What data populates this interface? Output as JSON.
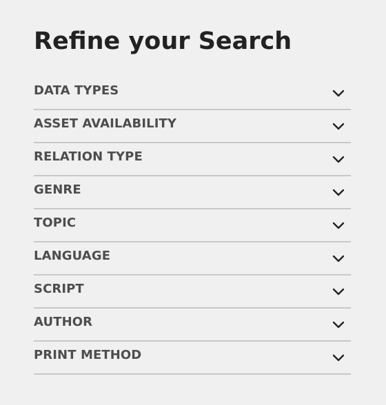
{
  "panel": {
    "title": "Refine your Search"
  },
  "facets": [
    {
      "label": "DATA TYPES",
      "icon": "chevron-down-icon"
    },
    {
      "label": "ASSET AVAILABILITY",
      "icon": "chevron-down-icon"
    },
    {
      "label": "RELATION TYPE",
      "icon": "chevron-down-icon"
    },
    {
      "label": "GENRE",
      "icon": "chevron-down-icon"
    },
    {
      "label": "TOPIC",
      "icon": "chevron-down-icon"
    },
    {
      "label": "LANGUAGE",
      "icon": "chevron-down-icon"
    },
    {
      "label": "SCRIPT",
      "icon": "chevron-down-icon"
    },
    {
      "label": "AUTHOR",
      "icon": "chevron-down-icon"
    },
    {
      "label": "PRINT METHOD",
      "icon": "chevron-down-icon"
    }
  ],
  "colors": {
    "background": "#f0f0f0",
    "title": "#222222",
    "label": "#4d4d4d",
    "divider": "#c8c8c8",
    "chevron": "#222222"
  }
}
